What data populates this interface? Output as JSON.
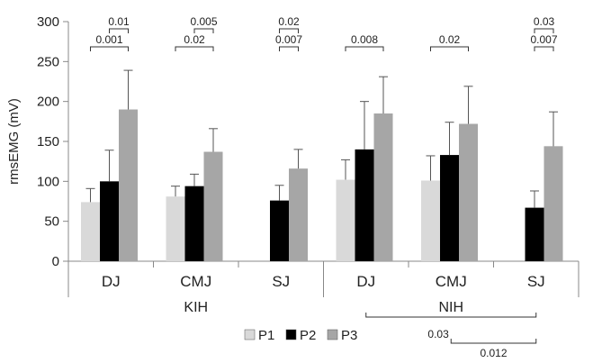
{
  "colors": {
    "P1": "#d9d9d9",
    "P2": "#000000",
    "P3": "#a6a6a6",
    "axis": "#888888",
    "bracket": "#333333"
  },
  "chart_data": {
    "type": "bar",
    "ylabel": "rmsEMG (mV)",
    "xlabel": "",
    "ylim": [
      0,
      300
    ],
    "yticks": [
      "0",
      "50",
      "100",
      "150",
      "200",
      "250",
      "300"
    ],
    "grid": false,
    "legend_position": "bottom-center",
    "categories": [
      "DJ",
      "CMJ",
      "SJ",
      "DJ",
      "CMJ",
      "SJ"
    ],
    "groups": [
      {
        "label": "KIH",
        "categories": [
          "DJ",
          "CMJ",
          "SJ"
        ]
      },
      {
        "label": "NIH",
        "categories": [
          "DJ",
          "CMJ",
          "SJ"
        ]
      }
    ],
    "series": [
      {
        "name": "P1",
        "values": [
          74,
          81,
          null,
          102,
          101,
          null
        ],
        "errors": [
          17,
          13,
          null,
          25,
          31,
          null
        ]
      },
      {
        "name": "P2",
        "values": [
          100,
          94,
          76,
          140,
          133,
          67
        ],
        "errors": [
          39,
          15,
          19,
          60,
          41,
          21
        ]
      },
      {
        "name": "P3",
        "values": [
          190,
          137,
          116,
          185,
          172,
          144
        ],
        "errors": [
          49,
          29,
          24,
          46,
          47,
          43
        ]
      }
    ],
    "comparisons": [
      {
        "category": 0,
        "from": "P2",
        "to": "P3",
        "p": "0.01",
        "level": 1
      },
      {
        "category": 0,
        "from": "P1",
        "to": "P3",
        "p": "0.001",
        "level": 0
      },
      {
        "category": 1,
        "from": "P2",
        "to": "P3",
        "p": "0.005",
        "level": 1
      },
      {
        "category": 1,
        "from": "P1",
        "to": "P3",
        "p": "0.02",
        "level": 0
      },
      {
        "category": 2,
        "from": "P2",
        "to": "P3",
        "p": "0.02",
        "level": 1
      },
      {
        "category": 2,
        "from": "P2",
        "to": "P3",
        "p": "0.007",
        "level": 0
      },
      {
        "category": 3,
        "from": "P1",
        "to": "P3",
        "p": "0.008",
        "level": 0
      },
      {
        "category": 4,
        "from": "P1",
        "to": "P3",
        "p": "0.02",
        "level": 0
      },
      {
        "category": 5,
        "from": "P2",
        "to": "P3",
        "p": "0.03",
        "level": 1
      },
      {
        "category": 5,
        "from": "P2",
        "to": "P3",
        "p": "0.007",
        "level": 0
      }
    ],
    "group_comparisons": [
      {
        "from": "NIH DJ",
        "to": "NIH SJ",
        "p": "0.03"
      },
      {
        "from": "NIH CMJ",
        "to": "NIH SJ",
        "p": "0.012"
      }
    ]
  }
}
